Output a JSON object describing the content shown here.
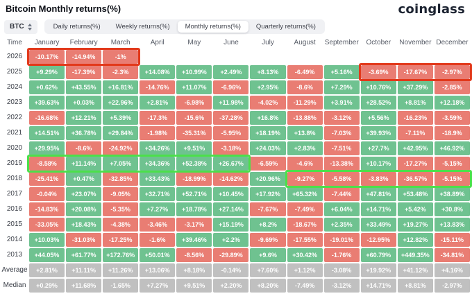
{
  "page": {
    "title": "Bitcoin Monthly returns(%)",
    "logo_text": "coinglass"
  },
  "toolbar": {
    "symbol_selector": {
      "label": "BTC"
    },
    "tabs": [
      {
        "label": "Daily returns(%)",
        "active": false
      },
      {
        "label": "Weekly returns(%)",
        "active": false
      },
      {
        "label": "Monthly returns(%)",
        "active": true
      },
      {
        "label": "Quarterly returns(%)",
        "active": false
      }
    ]
  },
  "colors": {
    "positive": "#6fc290",
    "negative": "#e97d73",
    "neutral": "#c0c0c0",
    "annotation_red": "#e2391b",
    "annotation_green": "#4be04a"
  },
  "chart_data": {
    "type": "heatmap",
    "title": "Bitcoin Monthly returns(%)",
    "columns": [
      "Time",
      "January",
      "February",
      "March",
      "April",
      "May",
      "June",
      "July",
      "August",
      "September",
      "October",
      "November",
      "December"
    ],
    "rows": [
      {
        "label": "2026",
        "neutral": false,
        "values": [
          "-10.17%",
          "-14.94%",
          "-1%",
          "",
          "",
          "",
          "",
          "",
          "",
          "",
          "",
          ""
        ]
      },
      {
        "label": "2025",
        "neutral": false,
        "values": [
          "+9.29%",
          "-17.39%",
          "-2.3%",
          "+14.08%",
          "+10.99%",
          "+2.49%",
          "+8.13%",
          "-6.49%",
          "+5.16%",
          "-3.69%",
          "-17.67%",
          "-2.97%"
        ]
      },
      {
        "label": "2024",
        "neutral": false,
        "values": [
          "+0.62%",
          "+43.55%",
          "+16.81%",
          "-14.76%",
          "+11.07%",
          "-6.96%",
          "+2.95%",
          "-8.6%",
          "+7.29%",
          "+10.76%",
          "+37.29%",
          "-2.85%"
        ]
      },
      {
        "label": "2023",
        "neutral": false,
        "values": [
          "+39.63%",
          "+0.03%",
          "+22.96%",
          "+2.81%",
          "-6.98%",
          "+11.98%",
          "-4.02%",
          "-11.29%",
          "+3.91%",
          "+28.52%",
          "+8.81%",
          "+12.18%"
        ]
      },
      {
        "label": "2022",
        "neutral": false,
        "values": [
          "-16.68%",
          "+12.21%",
          "+5.39%",
          "-17.3%",
          "-15.6%",
          "-37.28%",
          "+16.8%",
          "-13.88%",
          "-3.12%",
          "+5.56%",
          "-16.23%",
          "-3.59%"
        ]
      },
      {
        "label": "2021",
        "neutral": false,
        "values": [
          "+14.51%",
          "+36.78%",
          "+29.84%",
          "-1.98%",
          "-35.31%",
          "-5.95%",
          "+18.19%",
          "+13.8%",
          "-7.03%",
          "+39.93%",
          "-7.11%",
          "-18.9%"
        ]
      },
      {
        "label": "2020",
        "neutral": false,
        "values": [
          "+29.95%",
          "-8.6%",
          "-24.92%",
          "+34.26%",
          "+9.51%",
          "-3.18%",
          "+24.03%",
          "+2.83%",
          "-7.51%",
          "+27.7%",
          "+42.95%",
          "+46.92%"
        ]
      },
      {
        "label": "2019",
        "neutral": false,
        "values": [
          "-8.58%",
          "+11.14%",
          "+7.05%",
          "+34.36%",
          "+52.38%",
          "+26.67%",
          "-6.59%",
          "-4.6%",
          "-13.38%",
          "+10.17%",
          "-17.27%",
          "-5.15%"
        ]
      },
      {
        "label": "2018",
        "neutral": false,
        "values": [
          "-25.41%",
          "+0.47%",
          "-32.85%",
          "+33.43%",
          "-18.99%",
          "-14.62%",
          "+20.96%",
          "-9.27%",
          "-5.58%",
          "-3.83%",
          "-36.57%",
          "-5.15%"
        ]
      },
      {
        "label": "2017",
        "neutral": false,
        "values": [
          "-0.04%",
          "+23.07%",
          "-9.05%",
          "+32.71%",
          "+52.71%",
          "+10.45%",
          "+17.92%",
          "+65.32%",
          "-7.44%",
          "+47.81%",
          "+53.48%",
          "+38.89%"
        ]
      },
      {
        "label": "2016",
        "neutral": false,
        "values": [
          "-14.83%",
          "+20.08%",
          "-5.35%",
          "+7.27%",
          "+18.78%",
          "+27.14%",
          "-7.67%",
          "-7.49%",
          "+6.04%",
          "+14.71%",
          "+5.42%",
          "+30.8%"
        ]
      },
      {
        "label": "2015",
        "neutral": false,
        "values": [
          "-33.05%",
          "+18.43%",
          "-4.38%",
          "-3.46%",
          "-3.17%",
          "+15.19%",
          "+8.2%",
          "-18.67%",
          "+2.35%",
          "+33.49%",
          "+19.27%",
          "+13.83%"
        ]
      },
      {
        "label": "2014",
        "neutral": false,
        "values": [
          "+10.03%",
          "-31.03%",
          "-17.25%",
          "-1.6%",
          "+39.46%",
          "+2.2%",
          "-9.69%",
          "-17.55%",
          "-19.01%",
          "-12.95%",
          "+12.82%",
          "-15.11%"
        ]
      },
      {
        "label": "2013",
        "neutral": false,
        "values": [
          "+44.05%",
          "+61.77%",
          "+172.76%",
          "+50.01%",
          "-8.56%",
          "-29.89%",
          "+9.6%",
          "+30.42%",
          "-1.76%",
          "+60.79%",
          "+449.35%",
          "-34.81%"
        ]
      },
      {
        "label": "Average",
        "neutral": true,
        "values": [
          "+2.81%",
          "+11.11%",
          "+11.26%",
          "+13.06%",
          "+8.18%",
          "-0.14%",
          "+7.60%",
          "+1.12%",
          "-3.08%",
          "+19.92%",
          "+41.12%",
          "+4.16%"
        ]
      },
      {
        "label": "Median",
        "neutral": true,
        "values": [
          "+0.29%",
          "+11.68%",
          "-1.65%",
          "+7.27%",
          "+9.51%",
          "+2.20%",
          "+8.20%",
          "-7.49%",
          "-3.12%",
          "+14.71%",
          "+8.81%",
          "-2.97%"
        ]
      }
    ]
  },
  "annotations": [
    {
      "row": "2026",
      "start_col": "January",
      "end_col": "March",
      "color": "#e2391b"
    },
    {
      "row": "2025",
      "start_col": "October",
      "end_col": "December",
      "color": "#e2391b"
    },
    {
      "row": "2019",
      "start_col": "January",
      "end_col": "June",
      "color": "#4be04a"
    },
    {
      "row": "2018",
      "start_col": "August",
      "end_col": "December",
      "color": "#4be04a"
    }
  ]
}
